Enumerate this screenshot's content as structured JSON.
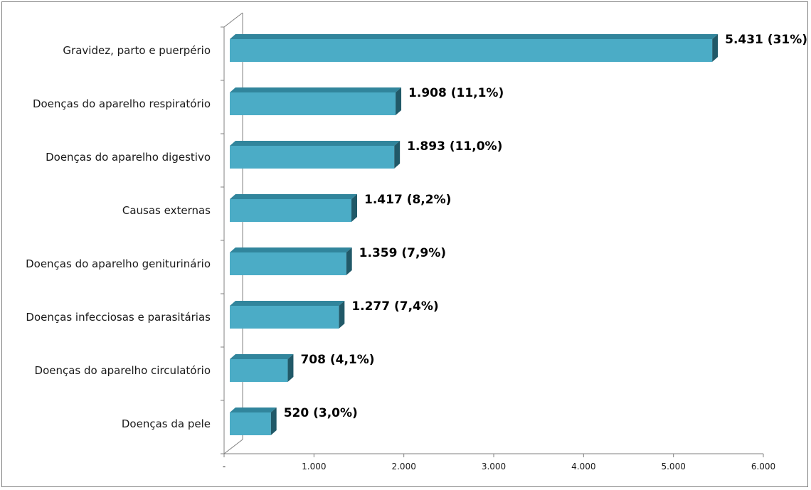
{
  "chart_data": {
    "type": "bar",
    "orientation": "horizontal",
    "style": "3d",
    "categories": [
      "Gravidez, parto e puerpério",
      "Doenças do aparelho respiratório",
      "Doenças do aparelho digestivo",
      "Causas externas",
      "Doenças do aparelho geniturinário",
      "Doenças infecciosas e parasitárias",
      "Doenças do aparelho circulatório",
      "Doenças da pele"
    ],
    "values": [
      5431,
      1908,
      1893,
      1417,
      1359,
      1277,
      708,
      520
    ],
    "data_labels": [
      "5.431 (31%)",
      "1.908 (11,1%)",
      "1.893 (11,0%)",
      "1.417 (8,2%)",
      "1.359 (7,9%)",
      "1.277 (7,4%)",
      "708 (4,1%)",
      "520 (3,0%)"
    ],
    "xlim": [
      0,
      6000
    ],
    "x_ticks": [
      0,
      1000,
      2000,
      3000,
      4000,
      5000,
      6000
    ],
    "x_tick_labels": [
      "-",
      "1.000",
      "2.000",
      "3.000",
      "4.000",
      "5.000",
      "6.000"
    ],
    "title": "",
    "xlabel": "",
    "ylabel": "",
    "grid": false,
    "legend": "none",
    "colors": {
      "bar_front": "#4bacc6",
      "bar_top": "#31859c",
      "bar_side": "#215968",
      "axis": "#808080"
    }
  }
}
